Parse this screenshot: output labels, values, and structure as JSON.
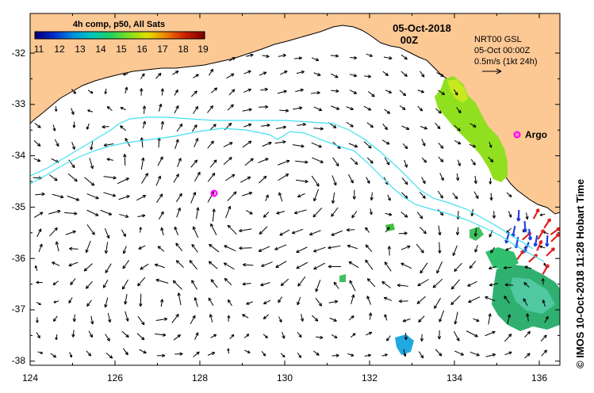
{
  "map": {
    "title_line1": "05-Oct-2018",
    "title_line2": "00Z",
    "colorbar_title": "4h comp, p50, All Sats",
    "colorbar_ticks": [
      "11",
      "12",
      "13",
      "14",
      "15",
      "16",
      "17",
      "18",
      "19"
    ],
    "colorbar_colors": [
      "#000080",
      "#0030d0",
      "#0090e0",
      "#00c8c0",
      "#20d060",
      "#80e020",
      "#e0e000",
      "#f08000",
      "#d02000",
      "#800000"
    ],
    "lon_labels": [
      "124",
      "126",
      "128",
      "130",
      "132",
      "134",
      "136"
    ],
    "lat_labels": [
      "-32",
      "-33",
      "-34",
      "-35",
      "-36",
      "-37",
      "-38"
    ],
    "legend_line1": "NRT00 GSL",
    "legend_line2": "05-Oct 00:00Z",
    "legend_line3": "0.5m/s (1kt 24h)",
    "argo_label": "Argo",
    "credit": "© IMOS 10-Oct-2018 11:28 Hobart Time",
    "land_color": "#fcc894",
    "contour_color": "#40e0f0",
    "argo_color": "#ff00ff"
  }
}
